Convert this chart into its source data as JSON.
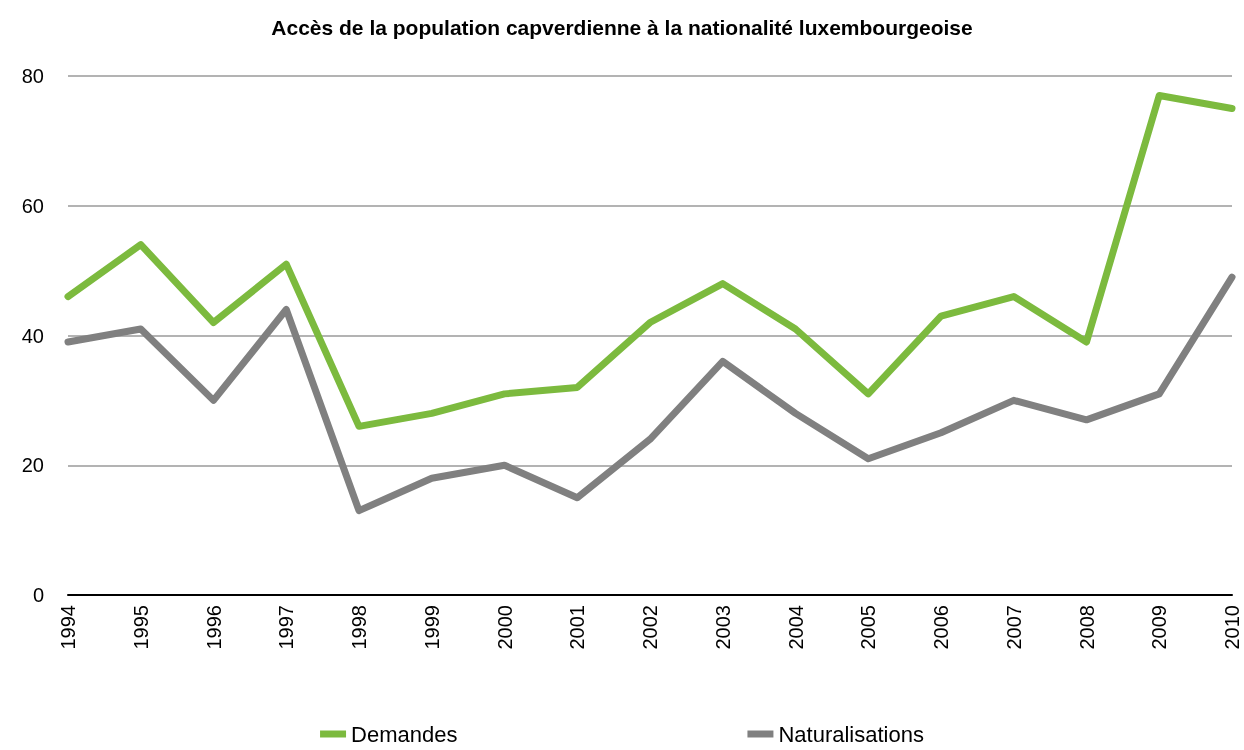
{
  "chart_data": {
    "type": "line",
    "title": "Accès de la population capverdienne à la nationalité luxembourgeoise",
    "categories": [
      "1994",
      "1995",
      "1996",
      "1997",
      "1998",
      "1999",
      "2000",
      "2001",
      "2002",
      "2003",
      "2004",
      "2005",
      "2006",
      "2007",
      "2008",
      "2009",
      "2010"
    ],
    "series": [
      {
        "name": "Demandes",
        "color": "#7cba3e",
        "values": [
          46,
          54,
          42,
          51,
          26,
          28,
          31,
          32,
          42,
          48,
          41,
          31,
          43,
          46,
          39,
          77,
          75
        ]
      },
      {
        "name": "Naturalisations",
        "color": "#808080",
        "values": [
          39,
          41,
          30,
          44,
          13,
          18,
          20,
          15,
          24,
          36,
          28,
          21,
          25,
          30,
          27,
          31,
          49
        ]
      }
    ],
    "ylim": [
      0,
      80
    ],
    "yticks": [
      0,
      20,
      40,
      60,
      80
    ],
    "grid": "y",
    "legend": "bottom",
    "marker": "none",
    "line_style": "solid"
  }
}
